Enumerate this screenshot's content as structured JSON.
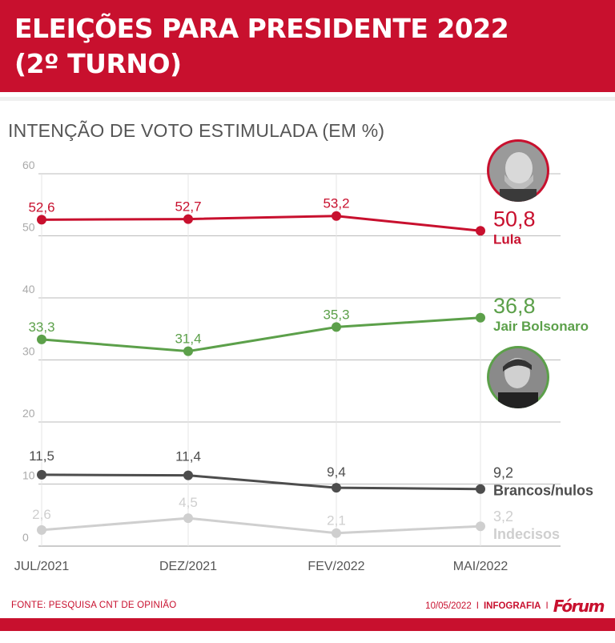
{
  "header": {
    "title_line1": "ELEIÇÕES PARA PRESIDENTE 2022",
    "title_line2": "(2º TURNO)"
  },
  "subtitle": "INTENÇÃO DE VOTO ESTIMULADA (EM %)",
  "colors": {
    "brand_red": "#c8102e",
    "lula": "#c8102e",
    "bolsonaro": "#5ca04a",
    "brancos": "#4d4d4d",
    "indecisos": "#cfcfcf"
  },
  "chart_data": {
    "type": "line",
    "title": "INTENÇÃO DE VOTO ESTIMULADA (EM %)",
    "xlabel": "",
    "ylabel": "",
    "categories": [
      "JUL/2021",
      "DEZ/2021",
      "FEV/2022",
      "MAI/2022"
    ],
    "ylim": [
      0,
      60
    ],
    "yticks": [
      0,
      10,
      20,
      30,
      40,
      50,
      60
    ],
    "grid": true,
    "series": [
      {
        "name": "Lula",
        "color": "#c8102e",
        "values": [
          52.6,
          52.7,
          53.2,
          50.8
        ],
        "labels": [
          "52,6",
          "52,7",
          "53,2",
          "50,8"
        ]
      },
      {
        "name": "Jair Bolsonaro",
        "color": "#5ca04a",
        "values": [
          33.3,
          31.4,
          35.3,
          36.8
        ],
        "labels": [
          "33,3",
          "31,4",
          "35,3",
          "36,8"
        ]
      },
      {
        "name": "Brancos/nulos",
        "color": "#4d4d4d",
        "values": [
          11.5,
          11.4,
          9.4,
          9.2
        ],
        "labels": [
          "11,5",
          "11,4",
          "9,4",
          "9,2"
        ]
      },
      {
        "name": "Indecisos",
        "color": "#cfcfcf",
        "values": [
          2.6,
          4.5,
          2.1,
          3.2
        ],
        "labels": [
          "2,6",
          "4,5",
          "2,1",
          "3,2"
        ]
      }
    ]
  },
  "footer": {
    "source": "FONTE: PESQUISA CNT DE OPINIÃO",
    "date": "10/05/2022",
    "separator": "I",
    "infografia": "INFOGRAFIA",
    "brand": "Fórum"
  }
}
